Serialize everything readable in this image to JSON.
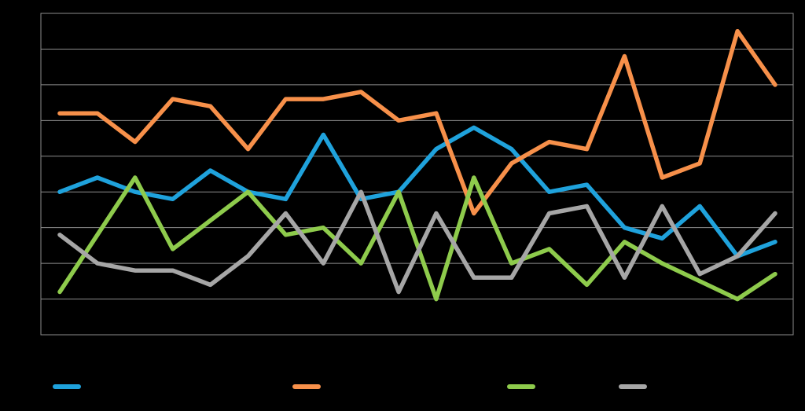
{
  "chart_data": {
    "type": "line",
    "title": "",
    "xlabel": "",
    "ylabel": "",
    "x": [
      1,
      2,
      3,
      4,
      5,
      6,
      7,
      8,
      9,
      10,
      11,
      12,
      13,
      14,
      15,
      16,
      17,
      18,
      19,
      20
    ],
    "ylim": [
      0,
      9
    ],
    "grid": true,
    "legend": "bottom",
    "series": [
      {
        "color": "#1fa2dc",
        "values": [
          4.0,
          4.4,
          4.0,
          3.8,
          4.6,
          4.0,
          3.8,
          5.6,
          3.8,
          4.0,
          5.2,
          5.8,
          5.2,
          4.0,
          4.2,
          3.0,
          2.7,
          3.6,
          2.2,
          2.6
        ]
      },
      {
        "color": "#f7904a",
        "values": [
          6.2,
          6.2,
          5.4,
          6.6,
          6.4,
          5.2,
          6.6,
          6.6,
          6.8,
          6.0,
          6.2,
          3.4,
          4.8,
          5.4,
          5.2,
          7.8,
          4.4,
          4.8,
          8.5,
          7.0
        ]
      },
      {
        "color": "#8ecb4c",
        "values": [
          1.2,
          2.8,
          4.4,
          2.4,
          3.2,
          4.0,
          2.8,
          3.0,
          2.0,
          4.0,
          1.0,
          4.4,
          2.0,
          2.4,
          1.4,
          2.6,
          2.0,
          1.5,
          1.0,
          1.7
        ]
      },
      {
        "color": "#a6a6a6",
        "values": [
          2.8,
          2.0,
          1.8,
          1.8,
          1.4,
          2.2,
          3.4,
          2.0,
          4.0,
          1.2,
          3.4,
          1.6,
          1.6,
          3.4,
          3.6,
          1.6,
          3.6,
          1.7,
          2.2,
          3.4
        ]
      }
    ]
  }
}
